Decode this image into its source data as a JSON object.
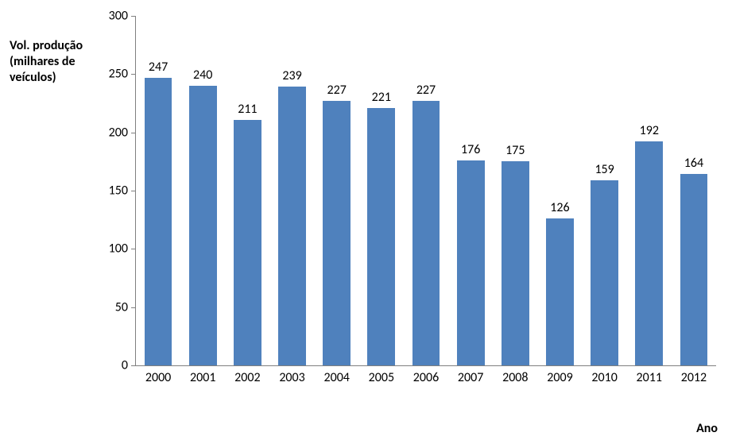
{
  "chart": {
    "type": "bar",
    "y_title": "Vol. produção (milhares de veículos)",
    "x_title": "Ano",
    "title_fontsize": 16,
    "label_fontsize": 16,
    "background_color": "#ffffff",
    "axis_color": "#808080",
    "bar_color": "#4f81bd",
    "bar_width_ratio": 0.62,
    "ylim": [
      0,
      300
    ],
    "ytick_step": 50,
    "yticks": [
      0,
      50,
      100,
      150,
      200,
      250,
      300
    ],
    "categories": [
      "2000",
      "2001",
      "2002",
      "2003",
      "2004",
      "2005",
      "2006",
      "2007",
      "2008",
      "2009",
      "2010",
      "2011",
      "2012"
    ],
    "values": [
      247,
      240,
      211,
      239,
      227,
      221,
      227,
      176,
      175,
      126,
      159,
      192,
      164
    ],
    "data_labels": [
      "247",
      "240",
      "211",
      "239",
      "227",
      "221",
      "227",
      "176",
      "175",
      "126",
      "159",
      "192",
      "164"
    ]
  }
}
